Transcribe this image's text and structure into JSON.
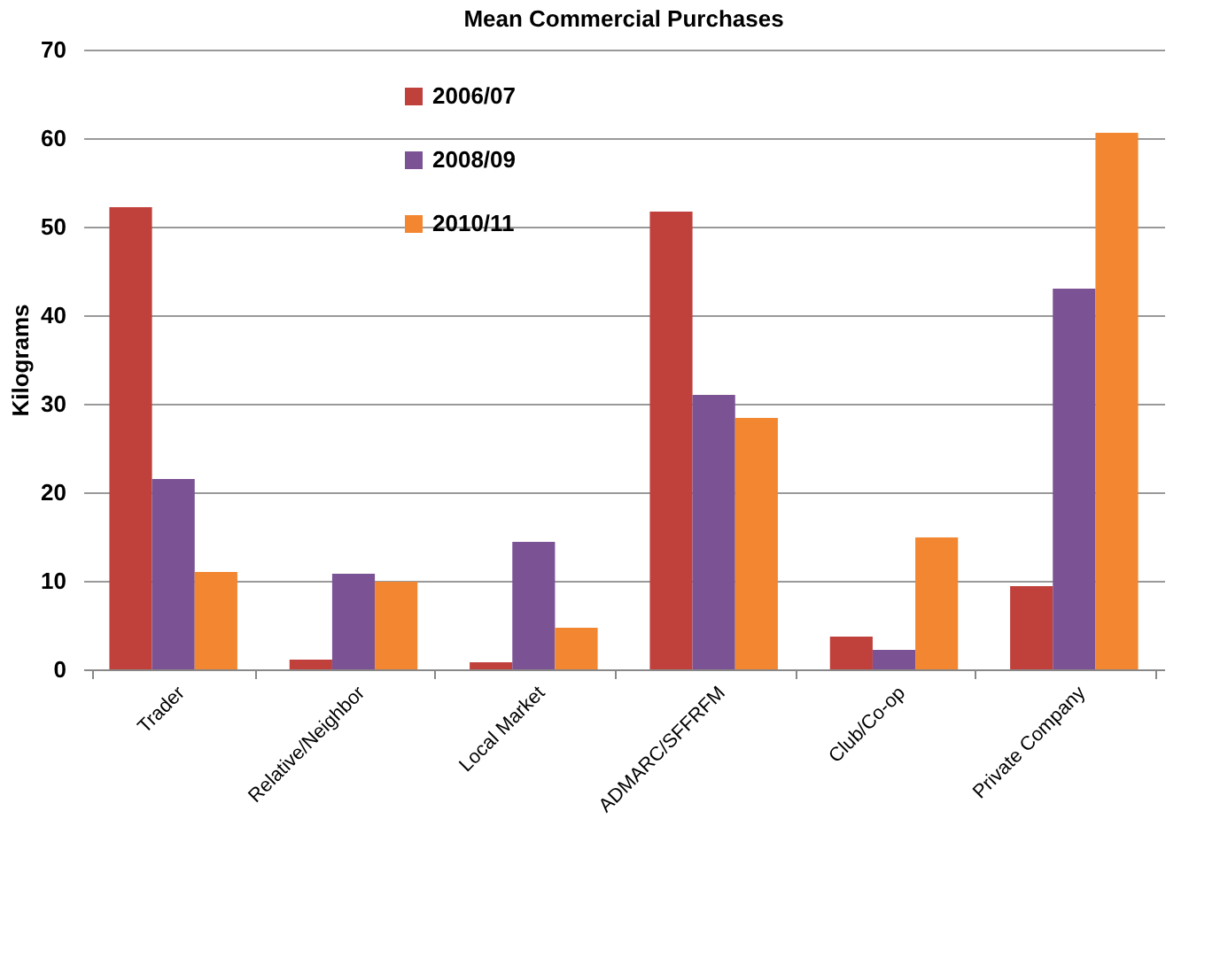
{
  "chart_data": {
    "type": "bar",
    "title": "Mean Commercial Purchases",
    "ylabel": "Kilograms",
    "categories": [
      "Trader",
      "Relative/Neighbor",
      "Local Market",
      "ADMARC/SFFRFM",
      "Club/Co-op",
      "Private Company"
    ],
    "series": [
      {
        "name": "2006/07",
        "color": "#c0403c",
        "values": [
          52.2,
          1.1,
          0.8,
          51.7,
          3.7,
          9.4
        ]
      },
      {
        "name": "2008/09",
        "color": "#7b5394",
        "values": [
          21.5,
          10.8,
          14.4,
          31.0,
          2.2,
          43.0
        ]
      },
      {
        "name": "2010/11",
        "color": "#f38630",
        "values": [
          11.0,
          9.9,
          4.7,
          28.4,
          14.9,
          60.6
        ]
      }
    ],
    "ylim": [
      0,
      70
    ],
    "yticks": [
      0,
      10,
      20,
      30,
      40,
      50,
      60,
      70
    ],
    "grid": "y",
    "legend": "top left"
  }
}
